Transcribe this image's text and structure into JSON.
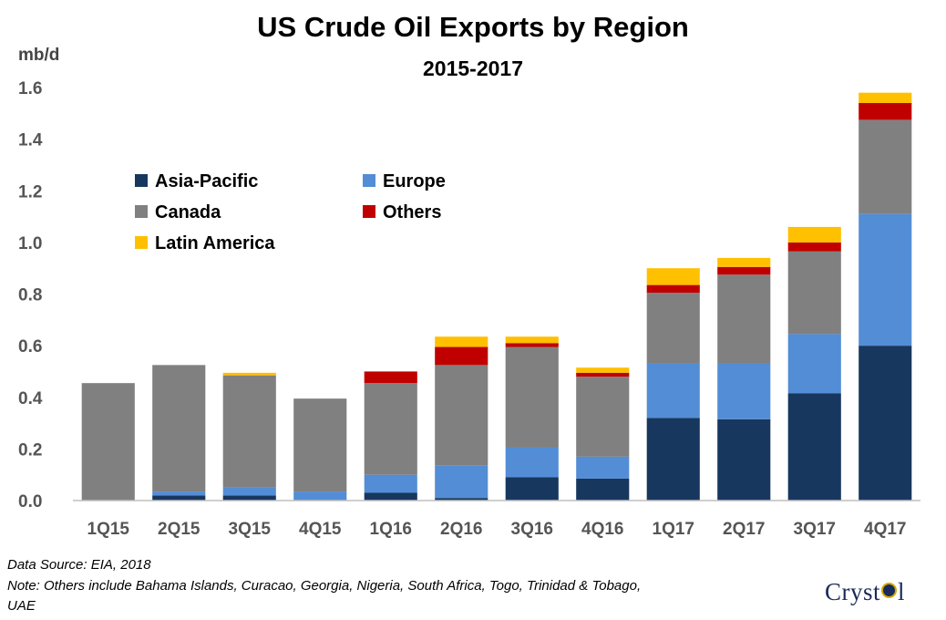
{
  "chart_data": {
    "type": "bar",
    "stacked": true,
    "title": "US Crude Oil Exports by Region",
    "subtitle": "2015-2017",
    "ylabel": "mb/d",
    "ylim": [
      0,
      1.6
    ],
    "yticks": [
      "0.0",
      "0.2",
      "0.4",
      "0.6",
      "0.8",
      "1.0",
      "1.2",
      "1.4",
      "1.6"
    ],
    "categories": [
      "1Q15",
      "2Q15",
      "3Q15",
      "4Q15",
      "1Q16",
      "2Q16",
      "3Q16",
      "4Q16",
      "1Q17",
      "2Q17",
      "3Q17",
      "4Q17"
    ],
    "series": [
      {
        "name": "Asia-Pacific",
        "color": "#17375e",
        "values": [
          0.0,
          0.02,
          0.02,
          0.0,
          0.03,
          0.01,
          0.09,
          0.085,
          0.32,
          0.315,
          0.415,
          0.6
        ]
      },
      {
        "name": "Europe",
        "color": "#538dd5",
        "values": [
          0.0,
          0.015,
          0.03,
          0.035,
          0.07,
          0.125,
          0.115,
          0.085,
          0.21,
          0.215,
          0.23,
          0.51
        ]
      },
      {
        "name": "Canada",
        "color": "#808080",
        "values": [
          0.455,
          0.49,
          0.435,
          0.36,
          0.355,
          0.39,
          0.39,
          0.31,
          0.275,
          0.345,
          0.32,
          0.365
        ]
      },
      {
        "name": "Others",
        "color": "#c00000",
        "values": [
          0.0,
          0.0,
          0.0,
          0.0,
          0.045,
          0.07,
          0.015,
          0.015,
          0.03,
          0.03,
          0.035,
          0.065
        ]
      },
      {
        "name": "Latin America",
        "color": "#ffc000",
        "values": [
          0.0,
          0.0,
          0.01,
          0.0,
          0.0,
          0.04,
          0.025,
          0.02,
          0.065,
          0.035,
          0.06,
          0.04
        ]
      }
    ],
    "legend_position": "upper-left",
    "grid": false
  },
  "footnotes": {
    "source": "Data Source: EIA, 2018",
    "note": "Note: Others include Bahama Islands, Curacao, Georgia,  Nigeria,  South Africa, Togo,  Trinidad & Tobago,",
    "note_cont": "UAE"
  },
  "logo": {
    "text_left": "Cryst",
    "text_right": "l"
  }
}
